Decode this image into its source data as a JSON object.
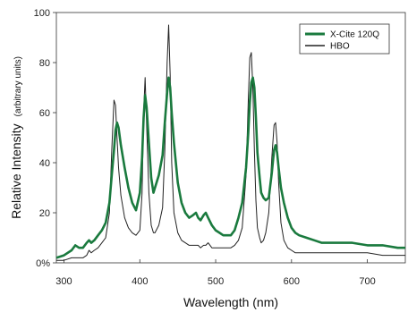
{
  "chart_data": {
    "type": "line",
    "xlabel": "Wavelength (nm)",
    "ylabel": "Relative Intensity",
    "ylabel_units": "(arbitrary units)",
    "xlim": [
      290,
      750
    ],
    "ylim": [
      0,
      100
    ],
    "x_ticks": [
      300,
      400,
      500,
      600,
      700
    ],
    "y_ticks": [
      0,
      20,
      40,
      60,
      80,
      100
    ],
    "y_tick_labels": [
      "0%",
      "20",
      "40",
      "60",
      "80",
      "100"
    ],
    "grid": false,
    "legend_position": "top-right",
    "series": [
      {
        "name": "X-Cite 120Q",
        "color": "#1a7a3e",
        "x": [
          290,
          300,
          310,
          315,
          320,
          325,
          330,
          333,
          336,
          340,
          345,
          350,
          355,
          360,
          363,
          366,
          368,
          370,
          372,
          375,
          380,
          385,
          390,
          395,
          400,
          403,
          405,
          407,
          409,
          412,
          415,
          418,
          420,
          425,
          430,
          433,
          436,
          438,
          440,
          442,
          445,
          450,
          455,
          460,
          465,
          470,
          474,
          477,
          480,
          484,
          487,
          490,
          495,
          500,
          505,
          510,
          515,
          520,
          525,
          530,
          535,
          540,
          543,
          545,
          547,
          549,
          551,
          553,
          555,
          558,
          560,
          563,
          566,
          570,
          574,
          577,
          579,
          581,
          583,
          586,
          590,
          595,
          600,
          605,
          610,
          620,
          630,
          640,
          650,
          660,
          680,
          700,
          720,
          740,
          750
        ],
        "y": [
          2,
          3,
          5,
          7,
          6,
          6,
          8,
          9,
          8,
          9,
          11,
          13,
          16,
          24,
          35,
          45,
          53,
          56,
          54,
          47,
          38,
          30,
          24,
          21,
          28,
          42,
          58,
          67,
          62,
          48,
          34,
          28,
          30,
          35,
          43,
          56,
          68,
          74,
          70,
          60,
          48,
          32,
          24,
          20,
          18,
          19,
          20,
          18,
          17,
          19,
          20,
          18,
          15,
          13,
          12,
          11,
          11,
          11,
          13,
          18,
          24,
          38,
          52,
          64,
          72,
          74,
          70,
          58,
          44,
          34,
          28,
          26,
          25,
          26,
          36,
          45,
          47,
          44,
          38,
          30,
          24,
          18,
          14,
          12,
          11,
          10,
          9,
          8,
          8,
          8,
          8,
          7,
          7,
          6,
          6
        ]
      },
      {
        "name": "HBO",
        "color": "#222222",
        "x": [
          290,
          300,
          310,
          315,
          320,
          325,
          330,
          333,
          336,
          340,
          345,
          350,
          355,
          360,
          363,
          366,
          368,
          370,
          372,
          375,
          380,
          385,
          390,
          395,
          400,
          403,
          405,
          407,
          409,
          412,
          415,
          418,
          420,
          425,
          430,
          433,
          436,
          438,
          440,
          442,
          445,
          450,
          455,
          460,
          465,
          470,
          474,
          477,
          480,
          484,
          487,
          490,
          495,
          500,
          505,
          510,
          515,
          520,
          525,
          530,
          535,
          540,
          543,
          545,
          547,
          549,
          551,
          553,
          555,
          558,
          560,
          563,
          566,
          570,
          574,
          577,
          579,
          581,
          583,
          586,
          590,
          595,
          600,
          605,
          610,
          620,
          630,
          640,
          650,
          660,
          680,
          700,
          720,
          740,
          750
        ],
        "y": [
          1,
          1,
          2,
          2,
          2,
          2,
          3,
          5,
          4,
          5,
          6,
          8,
          10,
          20,
          45,
          65,
          63,
          50,
          38,
          27,
          18,
          14,
          12,
          11,
          13,
          28,
          60,
          74,
          55,
          28,
          15,
          12,
          12,
          15,
          22,
          45,
          80,
          95,
          75,
          40,
          20,
          12,
          9,
          8,
          7,
          7,
          7,
          7,
          6,
          7,
          7,
          8,
          6,
          6,
          6,
          6,
          6,
          6,
          7,
          9,
          14,
          35,
          65,
          82,
          84,
          70,
          45,
          25,
          14,
          10,
          8,
          9,
          12,
          20,
          42,
          55,
          56,
          48,
          32,
          16,
          9,
          6,
          5,
          4,
          4,
          4,
          4,
          4,
          4,
          4,
          4,
          4,
          3,
          3,
          3
        ]
      }
    ]
  }
}
